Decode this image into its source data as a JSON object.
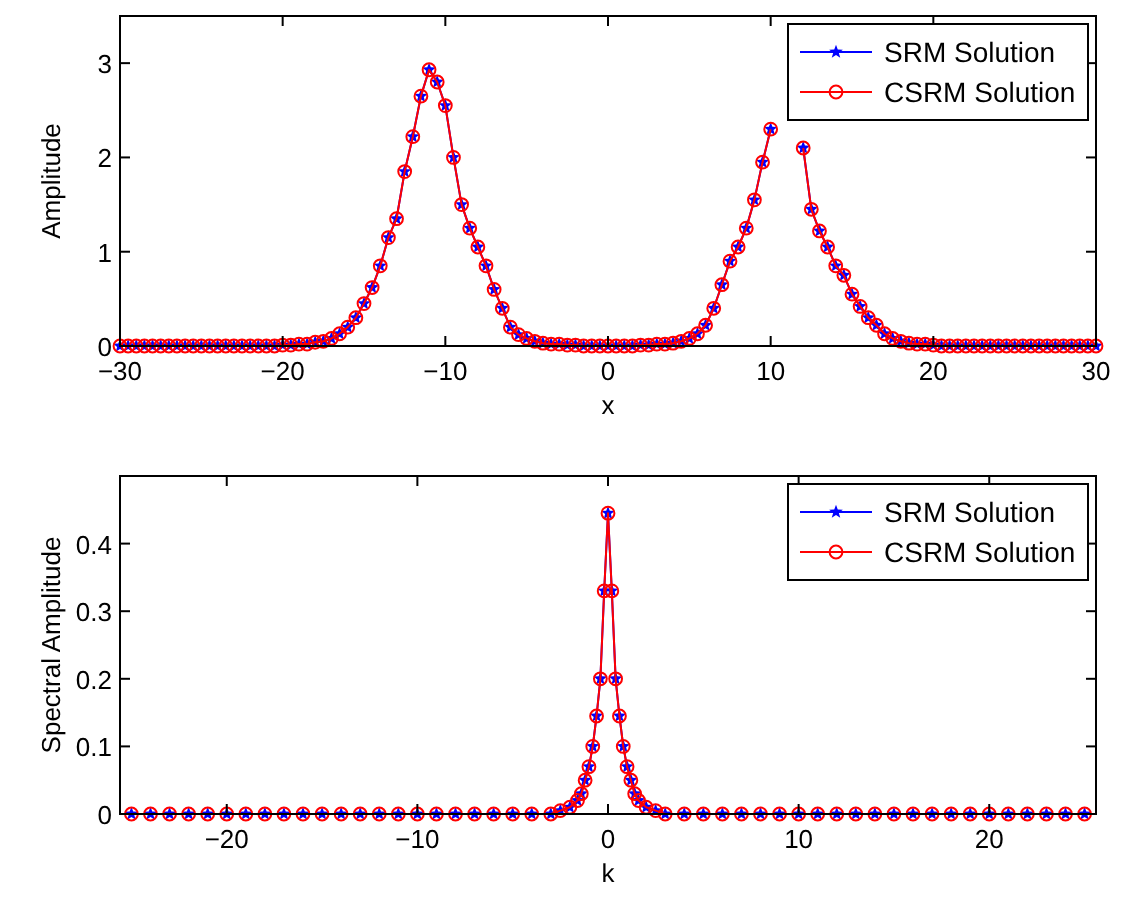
{
  "chart_data": [
    {
      "type": "line",
      "xlabel": "x",
      "ylabel": "Amplitude",
      "xlim": [
        -30,
        30
      ],
      "ylim": [
        0,
        3.5
      ],
      "xticks": [
        -30,
        -20,
        -10,
        0,
        10,
        20,
        30
      ],
      "yticks": [
        0,
        1,
        2,
        3
      ],
      "legend": "top right",
      "grid": false,
      "x": [
        -30,
        -29.5,
        -29,
        -28.5,
        -28,
        -27.5,
        -27,
        -26.5,
        -26,
        -25.5,
        -25,
        -24.5,
        -24,
        -23.5,
        -23,
        -22.5,
        -22,
        -21.5,
        -21,
        -20.5,
        -20,
        -19.5,
        -19,
        -18.5,
        -18,
        -17.5,
        -17,
        -16.5,
        -16,
        -15.5,
        -15,
        -14.5,
        -14,
        -13.5,
        -13,
        -12.5,
        -12,
        -11.5,
        -11,
        -10.5,
        -10,
        -9.5,
        -9,
        -8.5,
        -8,
        -7.5,
        -7,
        -6.5,
        -6,
        -5.5,
        -5,
        -4.5,
        -4,
        -3.5,
        -3,
        -2.5,
        -2,
        -1.5,
        -1,
        -0.5,
        0,
        0.5,
        1,
        1.5,
        2,
        2.5,
        3,
        3.5,
        4,
        4.5,
        5,
        5.5,
        6,
        6.5,
        7,
        7.5,
        8,
        8.5,
        9,
        9.5,
        10,
        10.5,
        11,
        11.5,
        12,
        12.5,
        13,
        13.5,
        14,
        14.5,
        15,
        15.5,
        16,
        16.5,
        17,
        17.5,
        18,
        18.5,
        19,
        19.5,
        20,
        20.5,
        21,
        21.5,
        22,
        22.5,
        23,
        23.5,
        24,
        24.5,
        25,
        25.5,
        26,
        26.5,
        27,
        27.5,
        28,
        28.5,
        29,
        29.5,
        30
      ],
      "series": [
        {
          "name": "SRM Solution",
          "color": "#0000ff",
          "marker": "star",
          "values": [
            0,
            0,
            0,
            0,
            0,
            0,
            0,
            0,
            0,
            0,
            0,
            0,
            0,
            0,
            0,
            0,
            0,
            0,
            0,
            0,
            0.01,
            0.01,
            0.02,
            0.02,
            0.04,
            0.05,
            0.08,
            0.13,
            0.2,
            0.3,
            0.45,
            0.62,
            0.85,
            1.15,
            1.35,
            1.85,
            2.22,
            2.65,
            2.93,
            2.8,
            2.55,
            2.0,
            1.5,
            1.25,
            1.05,
            0.85,
            0.6,
            0.4,
            0.2,
            0.12,
            0.08,
            0.05,
            0.03,
            0.02,
            0.02,
            0.01,
            0.01,
            0,
            0,
            0,
            0,
            0,
            0,
            0,
            0.01,
            0.01,
            0.02,
            0.02,
            0.03,
            0.05,
            0.08,
            0.13,
            0.22,
            0.4,
            0.65,
            0.9,
            1.05,
            1.25,
            1.55,
            1.95,
            2.3,
            null,
            null,
            null,
            2.1,
            1.45,
            1.22,
            1.05,
            0.85,
            0.75,
            0.55,
            0.42,
            0.3,
            0.22,
            0.13,
            0.08,
            0.05,
            0.03,
            0.02,
            0.02,
            0.01,
            0,
            0,
            0,
            0,
            0,
            0,
            0,
            0,
            0,
            0,
            0,
            0,
            0,
            0,
            0,
            0,
            0,
            0,
            0,
            0
          ]
        },
        {
          "name": "CSRM Solution",
          "color": "#ff0000",
          "marker": "circle",
          "values": [
            0,
            0,
            0,
            0,
            0,
            0,
            0,
            0,
            0,
            0,
            0,
            0,
            0,
            0,
            0,
            0,
            0,
            0,
            0,
            0,
            0.01,
            0.01,
            0.02,
            0.02,
            0.04,
            0.05,
            0.08,
            0.13,
            0.2,
            0.3,
            0.45,
            0.62,
            0.85,
            1.15,
            1.35,
            1.85,
            2.22,
            2.65,
            2.93,
            2.8,
            2.55,
            2.0,
            1.5,
            1.25,
            1.05,
            0.85,
            0.6,
            0.4,
            0.2,
            0.12,
            0.08,
            0.05,
            0.03,
            0.02,
            0.02,
            0.01,
            0.01,
            0,
            0,
            0,
            0,
            0,
            0,
            0,
            0.01,
            0.01,
            0.02,
            0.02,
            0.03,
            0.05,
            0.08,
            0.13,
            0.22,
            0.4,
            0.65,
            0.9,
            1.05,
            1.25,
            1.55,
            1.95,
            2.3,
            null,
            null,
            null,
            2.1,
            1.45,
            1.22,
            1.05,
            0.85,
            0.75,
            0.55,
            0.42,
            0.3,
            0.22,
            0.13,
            0.08,
            0.05,
            0.03,
            0.02,
            0.02,
            0.01,
            0,
            0,
            0,
            0,
            0,
            0,
            0,
            0,
            0,
            0,
            0,
            0,
            0,
            0,
            0,
            0,
            0,
            0,
            0,
            0
          ]
        }
      ]
    },
    {
      "type": "line",
      "xlabel": "k",
      "ylabel": "Spectral Amplitude",
      "xlim": [
        -25.6,
        25.6
      ],
      "ylim": [
        0,
        0.5
      ],
      "xticks": [
        -20,
        -10,
        0,
        10,
        20
      ],
      "yticks": [
        0,
        0.1,
        0.2,
        0.3,
        0.4
      ],
      "legend": "top right",
      "grid": false,
      "x": [
        -25,
        -24,
        -23,
        -22,
        -21,
        -20,
        -19,
        -18,
        -17,
        -16,
        -15,
        -14,
        -13,
        -12,
        -11,
        -10,
        -9,
        -8,
        -7,
        -6,
        -5,
        -4,
        -3,
        -2.5,
        -2,
        -1.6,
        -1.4,
        -1.2,
        -1,
        -0.8,
        -0.6,
        -0.4,
        -0.2,
        0,
        0.2,
        0.4,
        0.6,
        0.8,
        1,
        1.2,
        1.4,
        1.6,
        2,
        2.5,
        3,
        4,
        5,
        6,
        7,
        8,
        9,
        10,
        11,
        12,
        13,
        14,
        15,
        16,
        17,
        18,
        19,
        20,
        21,
        22,
        23,
        24,
        25
      ],
      "series": [
        {
          "name": "SRM Solution",
          "color": "#0000ff",
          "marker": "star",
          "values": [
            0,
            0,
            0,
            0,
            0,
            0,
            0,
            0,
            0,
            0,
            0,
            0,
            0,
            0,
            0,
            0,
            0,
            0,
            0,
            0,
            0,
            0,
            0,
            0.005,
            0.01,
            0.02,
            0.03,
            0.05,
            0.07,
            0.1,
            0.145,
            0.2,
            0.33,
            0.445,
            0.33,
            0.2,
            0.145,
            0.1,
            0.07,
            0.05,
            0.03,
            0.02,
            0.01,
            0.005,
            0,
            0,
            0,
            0,
            0,
            0,
            0,
            0,
            0,
            0,
            0,
            0,
            0,
            0,
            0,
            0,
            0,
            0,
            0,
            0,
            0,
            0,
            0
          ]
        },
        {
          "name": "CSRM Solution",
          "color": "#ff0000",
          "marker": "circle",
          "values": [
            0,
            0,
            0,
            0,
            0,
            0,
            0,
            0,
            0,
            0,
            0,
            0,
            0,
            0,
            0,
            0,
            0,
            0,
            0,
            0,
            0,
            0,
            0,
            0.005,
            0.01,
            0.02,
            0.03,
            0.05,
            0.07,
            0.1,
            0.145,
            0.2,
            0.33,
            0.445,
            0.33,
            0.2,
            0.145,
            0.1,
            0.07,
            0.05,
            0.03,
            0.02,
            0.01,
            0.005,
            0,
            0,
            0,
            0,
            0,
            0,
            0,
            0,
            0,
            0,
            0,
            0,
            0,
            0,
            0,
            0,
            0,
            0,
            0,
            0,
            0,
            0,
            0
          ]
        }
      ]
    }
  ]
}
